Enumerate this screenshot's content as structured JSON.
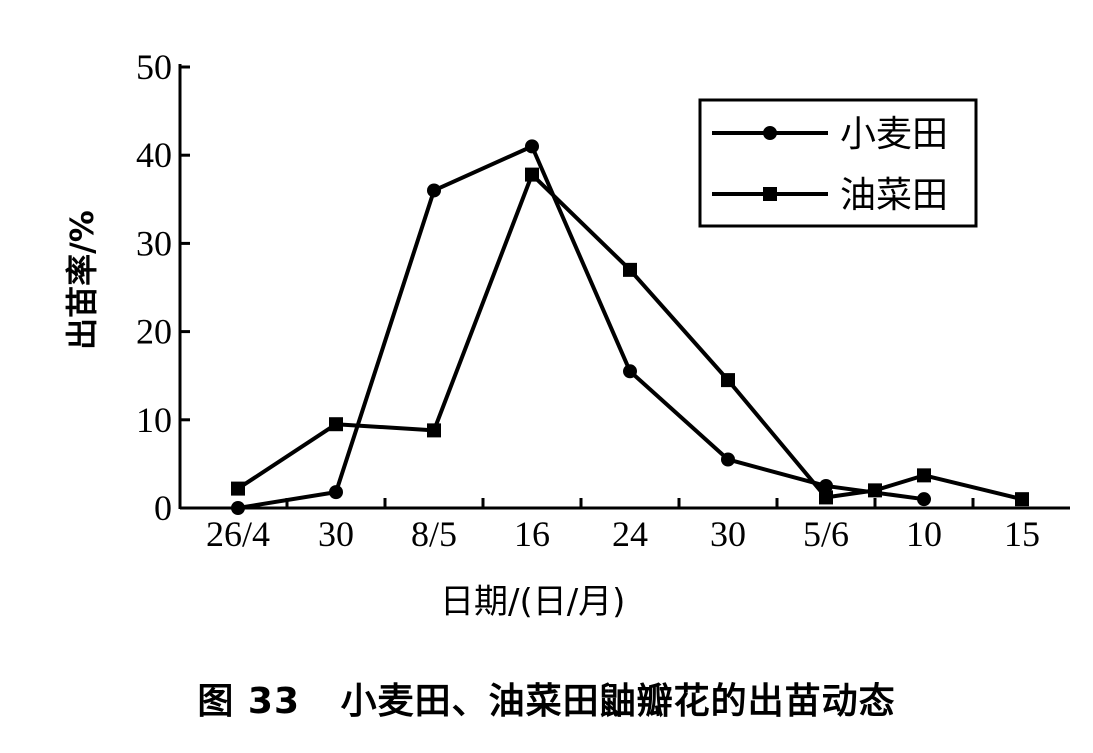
{
  "caption": "图 33   小麦田、油菜田鼬瓣花的出苗动态",
  "chart_data": {
    "type": "line",
    "title": "",
    "xlabel": "日期/(日/月)",
    "ylabel": "出苗率/%",
    "categories": [
      "26/4",
      "30",
      "8/5",
      "16",
      "24",
      "30",
      "5/6",
      "10",
      "15"
    ],
    "x_ticks": [
      0,
      2,
      4,
      6,
      8,
      10,
      12,
      14,
      16
    ],
    "ylim": [
      0,
      50
    ],
    "yticks": [
      0,
      10,
      20,
      30,
      40,
      50
    ],
    "legend_position": "top-right",
    "grid": false,
    "series": [
      {
        "name": "小麦田",
        "marker": "circle",
        "x": [
          0,
          2,
          4,
          6,
          8,
          10,
          12,
          14
        ],
        "values": [
          0,
          1.8,
          36,
          41,
          15.5,
          5.5,
          2.5,
          1
        ]
      },
      {
        "name": "油菜田",
        "marker": "square",
        "x": [
          0,
          2,
          4,
          6,
          8,
          10,
          12,
          13,
          14,
          16
        ],
        "values": [
          2.2,
          9.5,
          8.8,
          37.8,
          27,
          14.5,
          1.2,
          2,
          3.7,
          1
        ]
      }
    ]
  }
}
